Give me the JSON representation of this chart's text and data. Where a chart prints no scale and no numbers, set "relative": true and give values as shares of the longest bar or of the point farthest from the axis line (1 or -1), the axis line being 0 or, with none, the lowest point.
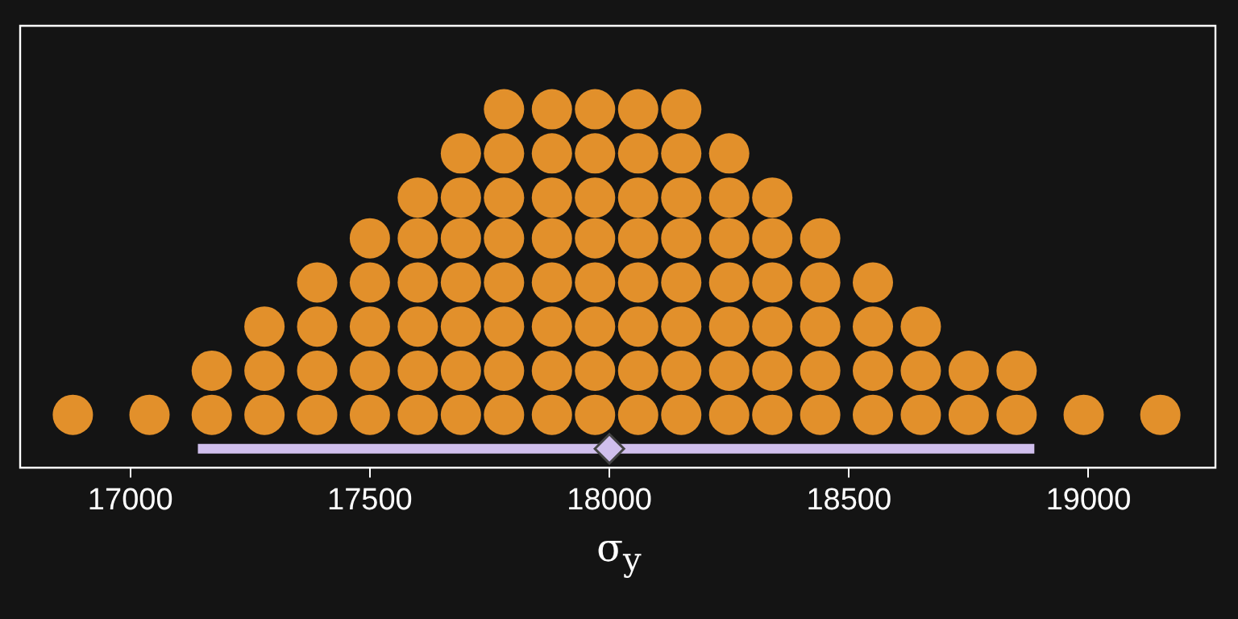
{
  "chart_data": {
    "type": "scatter",
    "xlabel": "σ$_{y}$",
    "xlim": [
      16770,
      19265
    ],
    "xticks": [
      17000,
      17500,
      18000,
      18500,
      19000
    ],
    "relative": true,
    "tick_labels": "x",
    "grid": false,
    "legend": false,
    "series": [
      {
        "color": "#e2902b",
        "marker": "circle",
        "x": [
          16880,
          17040,
          17170,
          17170,
          17280,
          17280,
          17280,
          17390,
          17390,
          17390,
          17390,
          17500,
          17500,
          17500,
          17500,
          17500,
          17600,
          17600,
          17600,
          17600,
          17600,
          17600,
          17690,
          17690,
          17690,
          17690,
          17690,
          17690,
          17690,
          17780,
          17780,
          17780,
          17780,
          17780,
          17780,
          17780,
          17780,
          17880,
          17880,
          17880,
          17880,
          17880,
          17880,
          17880,
          17880,
          17970,
          17970,
          17970,
          17970,
          17970,
          17970,
          17970,
          17970,
          18060,
          18060,
          18060,
          18060,
          18060,
          18060,
          18060,
          18060,
          18150,
          18150,
          18150,
          18150,
          18150,
          18150,
          18150,
          18150,
          18250,
          18250,
          18250,
          18250,
          18250,
          18250,
          18250,
          18340,
          18340,
          18340,
          18340,
          18340,
          18340,
          18440,
          18440,
          18440,
          18440,
          18440,
          18550,
          18550,
          18550,
          18550,
          18650,
          18650,
          18650,
          18750,
          18750,
          18850,
          18850,
          18990,
          19150
        ],
        "values": [
          0.1,
          0.1,
          0.1,
          0.23,
          0.1,
          0.23,
          0.36,
          0.1,
          0.23,
          0.36,
          0.49,
          0.1,
          0.23,
          0.36,
          0.49,
          0.62,
          0.1,
          0.23,
          0.36,
          0.49,
          0.62,
          0.74,
          0.1,
          0.23,
          0.36,
          0.49,
          0.62,
          0.74,
          0.87,
          0.1,
          0.23,
          0.36,
          0.49,
          0.62,
          0.74,
          0.87,
          1,
          0.1,
          0.23,
          0.36,
          0.49,
          0.62,
          0.74,
          0.87,
          1,
          0.1,
          0.23,
          0.36,
          0.49,
          0.62,
          0.74,
          0.87,
          1,
          0.1,
          0.23,
          0.36,
          0.49,
          0.62,
          0.74,
          0.87,
          1,
          0.1,
          0.23,
          0.36,
          0.49,
          0.62,
          0.74,
          0.87,
          1,
          0.1,
          0.23,
          0.36,
          0.49,
          0.62,
          0.74,
          0.87,
          0.1,
          0.23,
          0.36,
          0.49,
          0.62,
          0.74,
          0.1,
          0.23,
          0.36,
          0.49,
          0.62,
          0.1,
          0.23,
          0.36,
          0.49,
          0.1,
          0.23,
          0.36,
          0.1,
          0.23,
          0.1,
          0.23,
          0.1,
          0.1
        ]
      },
      {
        "type": "line",
        "color": "#d0bfed",
        "marker": "none",
        "x": [
          17141,
          18887
        ],
        "values": [
          0,
          0
        ]
      },
      {
        "color": "#d0bfed",
        "marker": "diamond",
        "x": [
          18000
        ],
        "values": [
          0
        ]
      }
    ]
  }
}
